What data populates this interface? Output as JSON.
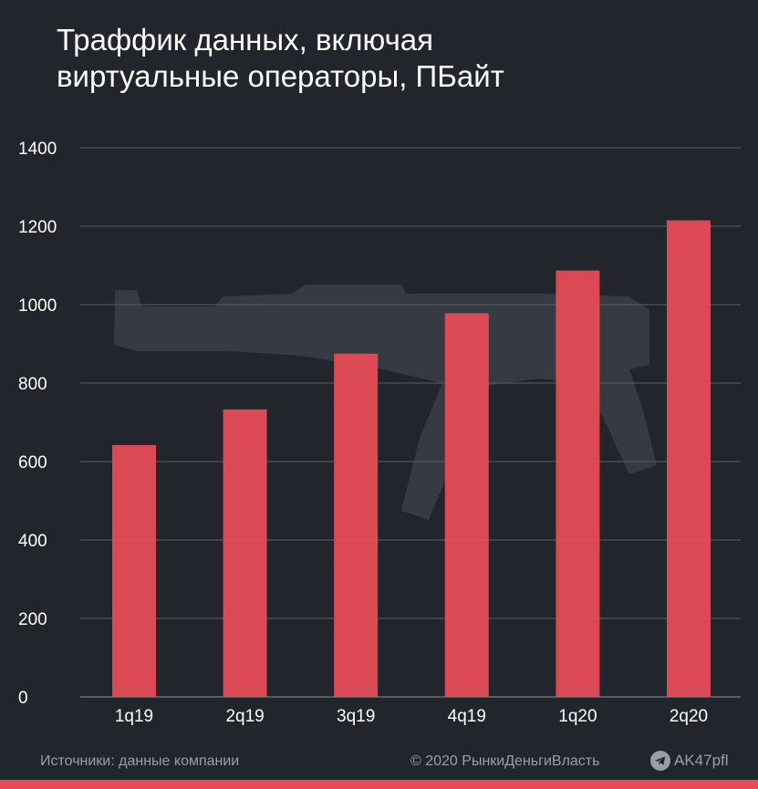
{
  "title_lines": [
    "Траффик данных, включая",
    "виртуальные операторы, ПБайт"
  ],
  "footer": {
    "source": "Источники: данные компании",
    "copyright": "© 2020 РынкиДеньгиВласть",
    "channel": "AK47pfl",
    "channel_icon": "telegram-icon"
  },
  "colors": {
    "background": "#22252c",
    "bar": "#e84c57",
    "grid": "#5a5e66",
    "watermark": "#3a3e47",
    "footer_text": "#9a9ea6"
  },
  "chart_data": {
    "type": "bar",
    "title": "Траффик данных, включая виртуальные операторы, ПБайт",
    "categories": [
      "1q19",
      "2q19",
      "3q19",
      "4q19",
      "1q20",
      "2q20"
    ],
    "values": [
      642,
      733,
      875,
      978,
      1087,
      1215
    ],
    "yticks": [
      0,
      200,
      400,
      600,
      800,
      1000,
      1200,
      1400
    ],
    "ylim": [
      0,
      1400
    ],
    "xlabel": "",
    "ylabel": "",
    "grid": true,
    "legend": "none"
  }
}
